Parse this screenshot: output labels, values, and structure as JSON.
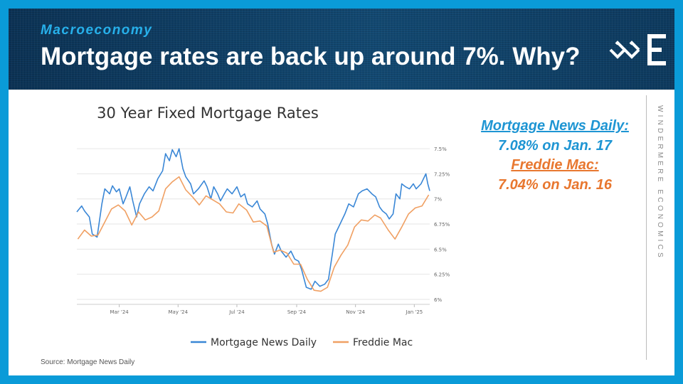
{
  "header": {
    "section": "Macroeconomy",
    "title": "Mortgage rates are back up around 7%. Why?"
  },
  "brand": {
    "vertical_text": "WINDERMERE ECONOMICS",
    "logo_icon": "windermere-w-logo-icon",
    "letter_icon": "windermere-e-letter-icon"
  },
  "annotation": {
    "mnd_name": "Mortgage News Daily:",
    "mnd_value": "7.08% on Jan. 17",
    "fm_name": "Freddie Mac:",
    "fm_value": "7.04% on Jan. 16"
  },
  "source": "Source: Mortgage News Daily",
  "colors": {
    "mnd": "#3a87d6",
    "freddie": "#f0a063",
    "annot_blue": "#1e95d3",
    "annot_orange": "#e8772f"
  },
  "chart_data": {
    "type": "line",
    "title": "30 Year Fixed Mortgage Rates",
    "xlabel": "",
    "ylabel": "",
    "x_ticks": [
      {
        "label": "Mar '24",
        "date": "2024-03-01"
      },
      {
        "label": "May '24",
        "date": "2024-05-01"
      },
      {
        "label": "Jul '24",
        "date": "2024-07-01"
      },
      {
        "label": "Sep '24",
        "date": "2024-09-01"
      },
      {
        "label": "Nov '24",
        "date": "2024-11-01"
      },
      {
        "label": "Jan '25",
        "date": "2025-01-01"
      }
    ],
    "y_ticks": [
      {
        "label": "6%",
        "value": 6.0
      },
      {
        "label": "6.25%",
        "value": 6.25
      },
      {
        "label": "6.5%",
        "value": 6.5
      },
      {
        "label": "6.75%",
        "value": 6.75
      },
      {
        "label": "7%",
        "value": 7.0
      },
      {
        "label": "7.25%",
        "value": 7.25
      },
      {
        "label": "7.5%",
        "value": 7.5
      }
    ],
    "xlim": [
      "2024-01-17",
      "2025-01-17"
    ],
    "ylim": [
      5.95,
      7.55
    ],
    "grid": true,
    "legend": "bottom",
    "series": [
      {
        "name": "Mortgage News Daily",
        "points": [
          [
            "2024-01-17",
            6.87
          ],
          [
            "2024-01-22",
            6.93
          ],
          [
            "2024-01-25",
            6.88
          ],
          [
            "2024-01-30",
            6.82
          ],
          [
            "2024-02-02",
            6.65
          ],
          [
            "2024-02-07",
            6.62
          ],
          [
            "2024-02-12",
            6.95
          ],
          [
            "2024-02-15",
            7.1
          ],
          [
            "2024-02-20",
            7.05
          ],
          [
            "2024-02-23",
            7.13
          ],
          [
            "2024-02-27",
            7.07
          ],
          [
            "2024-03-01",
            7.1
          ],
          [
            "2024-03-05",
            6.95
          ],
          [
            "2024-03-08",
            7.02
          ],
          [
            "2024-03-12",
            7.12
          ],
          [
            "2024-03-15",
            6.98
          ],
          [
            "2024-03-19",
            6.82
          ],
          [
            "2024-03-22",
            6.95
          ],
          [
            "2024-03-27",
            7.05
          ],
          [
            "2024-04-01",
            7.12
          ],
          [
            "2024-04-05",
            7.08
          ],
          [
            "2024-04-10",
            7.2
          ],
          [
            "2024-04-15",
            7.28
          ],
          [
            "2024-04-18",
            7.45
          ],
          [
            "2024-04-22",
            7.38
          ],
          [
            "2024-04-25",
            7.49
          ],
          [
            "2024-04-29",
            7.42
          ],
          [
            "2024-05-02",
            7.5
          ],
          [
            "2024-05-06",
            7.3
          ],
          [
            "2024-05-09",
            7.22
          ],
          [
            "2024-05-14",
            7.15
          ],
          [
            "2024-05-17",
            7.05
          ],
          [
            "2024-05-22",
            7.1
          ],
          [
            "2024-05-28",
            7.18
          ],
          [
            "2024-05-31",
            7.12
          ],
          [
            "2024-06-04",
            7.0
          ],
          [
            "2024-06-07",
            7.12
          ],
          [
            "2024-06-11",
            7.05
          ],
          [
            "2024-06-14",
            6.98
          ],
          [
            "2024-06-18",
            7.05
          ],
          [
            "2024-06-21",
            7.1
          ],
          [
            "2024-06-26",
            7.05
          ],
          [
            "2024-07-01",
            7.12
          ],
          [
            "2024-07-05",
            7.02
          ],
          [
            "2024-07-09",
            7.05
          ],
          [
            "2024-07-12",
            6.95
          ],
          [
            "2024-07-17",
            6.92
          ],
          [
            "2024-07-22",
            6.98
          ],
          [
            "2024-07-25",
            6.9
          ],
          [
            "2024-07-30",
            6.85
          ],
          [
            "2024-08-02",
            6.75
          ],
          [
            "2024-08-06",
            6.55
          ],
          [
            "2024-08-09",
            6.45
          ],
          [
            "2024-08-13",
            6.55
          ],
          [
            "2024-08-16",
            6.48
          ],
          [
            "2024-08-21",
            6.42
          ],
          [
            "2024-08-26",
            6.48
          ],
          [
            "2024-08-30",
            6.4
          ],
          [
            "2024-09-03",
            6.38
          ],
          [
            "2024-09-06",
            6.3
          ],
          [
            "2024-09-11",
            6.12
          ],
          [
            "2024-09-16",
            6.1
          ],
          [
            "2024-09-20",
            6.18
          ],
          [
            "2024-09-25",
            6.13
          ],
          [
            "2024-09-30",
            6.15
          ],
          [
            "2024-10-04",
            6.2
          ],
          [
            "2024-10-08",
            6.45
          ],
          [
            "2024-10-11",
            6.65
          ],
          [
            "2024-10-16",
            6.75
          ],
          [
            "2024-10-21",
            6.85
          ],
          [
            "2024-10-25",
            6.95
          ],
          [
            "2024-10-30",
            6.92
          ],
          [
            "2024-11-04",
            7.05
          ],
          [
            "2024-11-08",
            7.08
          ],
          [
            "2024-11-13",
            7.1
          ],
          [
            "2024-11-18",
            7.05
          ],
          [
            "2024-11-22",
            7.02
          ],
          [
            "2024-11-26",
            6.92
          ],
          [
            "2024-11-29",
            6.88
          ],
          [
            "2024-12-03",
            6.85
          ],
          [
            "2024-12-06",
            6.8
          ],
          [
            "2024-12-10",
            6.85
          ],
          [
            "2024-12-13",
            7.05
          ],
          [
            "2024-12-17",
            7.0
          ],
          [
            "2024-12-19",
            7.15
          ],
          [
            "2024-12-23",
            7.12
          ],
          [
            "2024-12-27",
            7.1
          ],
          [
            "2024-12-31",
            7.15
          ],
          [
            "2025-01-03",
            7.1
          ],
          [
            "2025-01-08",
            7.15
          ],
          [
            "2025-01-13",
            7.25
          ],
          [
            "2025-01-15",
            7.15
          ],
          [
            "2025-01-17",
            7.08
          ]
        ]
      },
      {
        "name": "Freddie Mac",
        "points": [
          [
            "2024-01-18",
            6.6
          ],
          [
            "2024-01-25",
            6.69
          ],
          [
            "2024-02-01",
            6.63
          ],
          [
            "2024-02-08",
            6.64
          ],
          [
            "2024-02-15",
            6.77
          ],
          [
            "2024-02-22",
            6.9
          ],
          [
            "2024-02-29",
            6.94
          ],
          [
            "2024-03-07",
            6.88
          ],
          [
            "2024-03-14",
            6.74
          ],
          [
            "2024-03-21",
            6.87
          ],
          [
            "2024-03-28",
            6.79
          ],
          [
            "2024-04-04",
            6.82
          ],
          [
            "2024-04-11",
            6.88
          ],
          [
            "2024-04-18",
            7.1
          ],
          [
            "2024-04-25",
            7.17
          ],
          [
            "2024-05-02",
            7.22
          ],
          [
            "2024-05-09",
            7.09
          ],
          [
            "2024-05-16",
            7.02
          ],
          [
            "2024-05-23",
            6.94
          ],
          [
            "2024-05-30",
            7.03
          ],
          [
            "2024-06-06",
            6.99
          ],
          [
            "2024-06-13",
            6.95
          ],
          [
            "2024-06-20",
            6.87
          ],
          [
            "2024-06-27",
            6.86
          ],
          [
            "2024-07-03",
            6.95
          ],
          [
            "2024-07-11",
            6.89
          ],
          [
            "2024-07-18",
            6.77
          ],
          [
            "2024-07-25",
            6.78
          ],
          [
            "2024-08-01",
            6.73
          ],
          [
            "2024-08-08",
            6.47
          ],
          [
            "2024-08-15",
            6.49
          ],
          [
            "2024-08-22",
            6.46
          ],
          [
            "2024-08-29",
            6.35
          ],
          [
            "2024-09-05",
            6.35
          ],
          [
            "2024-09-12",
            6.2
          ],
          [
            "2024-09-19",
            6.09
          ],
          [
            "2024-09-26",
            6.08
          ],
          [
            "2024-10-03",
            6.12
          ],
          [
            "2024-10-10",
            6.32
          ],
          [
            "2024-10-17",
            6.44
          ],
          [
            "2024-10-24",
            6.54
          ],
          [
            "2024-10-31",
            6.72
          ],
          [
            "2024-11-07",
            6.79
          ],
          [
            "2024-11-14",
            6.78
          ],
          [
            "2024-11-21",
            6.84
          ],
          [
            "2024-11-27",
            6.81
          ],
          [
            "2024-12-05",
            6.69
          ],
          [
            "2024-12-12",
            6.6
          ],
          [
            "2024-12-19",
            6.72
          ],
          [
            "2024-12-26",
            6.85
          ],
          [
            "2025-01-02",
            6.91
          ],
          [
            "2025-01-09",
            6.93
          ],
          [
            "2025-01-16",
            7.04
          ]
        ]
      }
    ]
  }
}
